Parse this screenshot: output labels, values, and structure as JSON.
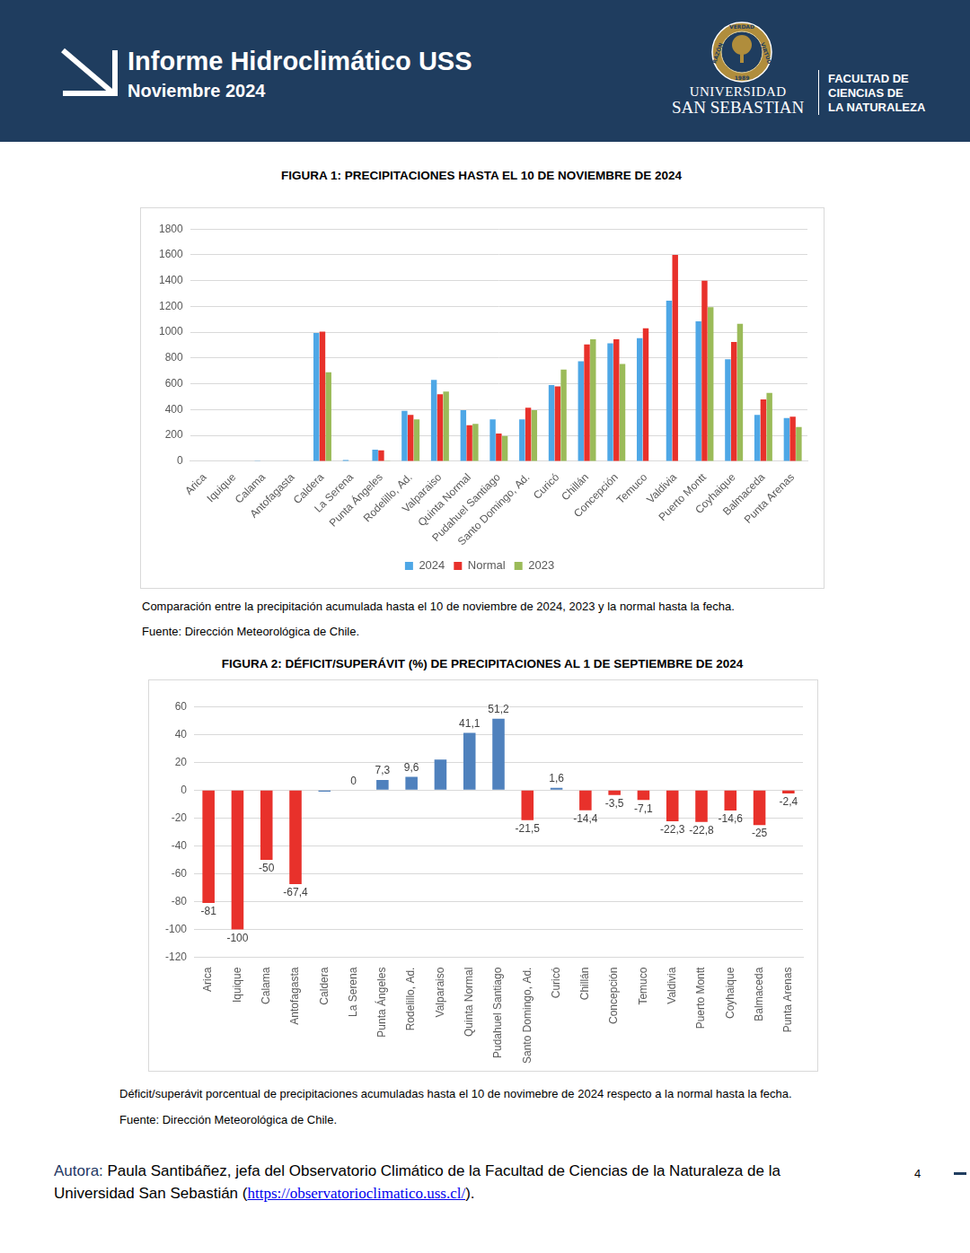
{
  "header": {
    "title": "Informe Hidroclimático USS",
    "subtitle": "Noviembre 2024",
    "seal": [
      "RAZÓN",
      "VERDAD",
      "VIRTUD",
      "1989"
    ],
    "university": [
      "UNIVERSIDAD",
      "SAN SEBASTIAN"
    ],
    "faculty": [
      "FACULTAD DE",
      "CIENCIAS DE",
      "LA NATURALEZA"
    ]
  },
  "chart_data": [
    {
      "type": "bar",
      "title": "FIGURA 1: PRECIPITACIONES HASTA EL 10 DE NOVIEMBRE DE 2024",
      "categories": [
        "Arica",
        "Iquique",
        "Calama",
        "Antofagasta",
        "Caldera",
        "La Serena",
        "Punta Ángeles",
        "Rodelillo, Ad.",
        "Valparaiso",
        "Quinta Normal",
        "Pudahuel Santiago",
        "Santo Domingo, Ad.",
        "Curicó",
        "Chillán",
        "Concepción",
        "Temuco",
        "Valdivia",
        "Puerto Montt",
        "Coyhaique",
        "Balmaceda",
        "Punta Arenas"
      ],
      "series": [
        {
          "name": "2024",
          "color": "#4ea7e6",
          "values": [
            0,
            0,
            5,
            0,
            995,
            10,
            90,
            390,
            630,
            395,
            325,
            325,
            590,
            775,
            915,
            955,
            1245,
            1085,
            790,
            360,
            335
          ]
        },
        {
          "name": "Normal",
          "color": "#e8312b",
          "values": [
            0,
            0,
            0,
            0,
            1005,
            0,
            85,
            360,
            520,
            280,
            215,
            415,
            580,
            905,
            945,
            1030,
            1600,
            1400,
            925,
            480,
            345
          ]
        },
        {
          "name": "2023",
          "color": "#9bbb59",
          "values": [
            0,
            0,
            0,
            0,
            690,
            0,
            5,
            325,
            540,
            290,
            195,
            395,
            710,
            945,
            755,
            0,
            0,
            1195,
            1065,
            530,
            265
          ]
        }
      ],
      "ylim": [
        0,
        1800
      ],
      "yticks": [
        0,
        200,
        400,
        600,
        800,
        1000,
        1200,
        1400,
        1600,
        1800
      ],
      "grid": true,
      "legend": "bottom",
      "annotations": [
        "Comparación entre la precipitación acumulada hasta el 10 de noviembre de 2024, 2023 y la normal hasta la fecha.",
        "Fuente: Dirección Meteorológica de Chile."
      ]
    },
    {
      "type": "bar",
      "title": "FIGURA 2: DÉFICIT/SUPERÁVIT (%) DE PRECIPITACIONES AL 1 DE SEPTIEMBRE DE 2024",
      "categories": [
        "Arica",
        "Iquique",
        "Calama",
        "Antofagasta",
        "Caldera",
        "La Serena",
        "Punta Ángeles",
        "Rodelillo, Ad.",
        "Valparaiso",
        "Quinta Normal",
        "Pudahuel Santiago",
        "Santo Domingo, Ad.",
        "Curicó",
        "Chillán",
        "Concepción",
        "Temuco",
        "Valdivia",
        "Puerto Montt",
        "Coyhaique",
        "Balmaceda",
        "Punta Arenas"
      ],
      "values": [
        -81,
        -100,
        -50,
        -67.4,
        -1,
        0,
        7.3,
        9.6,
        22,
        41.1,
        51.2,
        -21.5,
        1.6,
        -14.4,
        -3.5,
        -7.1,
        -22.3,
        -22.8,
        -14.6,
        -25,
        -2.4
      ],
      "value_labels": [
        "-81",
        "-100",
        "-50",
        "-67,4",
        null,
        "0",
        "7,3",
        "9,6",
        null,
        "41,1",
        "51,2",
        "-21,5",
        "1,6",
        "-14,4",
        "-3,5",
        "-7,1",
        "-22,3",
        "-22,8",
        "-14,6",
        "-25",
        "-2,4"
      ],
      "colors": [
        "#e8312b",
        "#e8312b",
        "#e8312b",
        "#e8312b",
        "#4f81bd",
        "#4f81bd",
        "#4f81bd",
        "#4f81bd",
        "#4f81bd",
        "#4f81bd",
        "#4f81bd",
        "#e8312b",
        "#4f81bd",
        "#e8312b",
        "#e8312b",
        "#e8312b",
        "#e8312b",
        "#e8312b",
        "#e8312b",
        "#e8312b",
        "#e8312b"
      ],
      "ylim": [
        -120,
        60
      ],
      "yticks": [
        -120,
        -100,
        -80,
        -60,
        -40,
        -20,
        0,
        20,
        40,
        60
      ],
      "grid": true,
      "data_labels": true,
      "annotations": [
        "Déficit/superávit porcentual de precipitaciones acumuladas hasta el 10 de novimebre de 2024 respecto a la normal hasta la fecha.",
        "Fuente: Dirección Meteorológica de Chile."
      ]
    }
  ],
  "footer": {
    "author_label": "Autora:",
    "author_text": " Paula Santibáñez, jefa del Observatorio Climático de la Facultad de Ciencias de la Naturaleza de la Universidad San Sebastián (",
    "link": "https://observatorioclimatico.uss.cl/",
    "closing": ").",
    "page": "4"
  }
}
